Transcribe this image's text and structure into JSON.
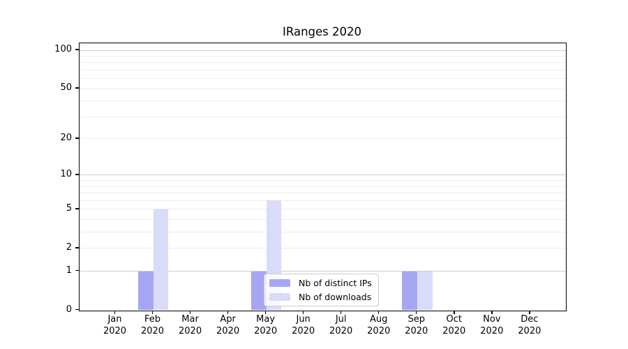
{
  "title": "IRanges 2020",
  "chart_data": {
    "type": "bar",
    "title": "IRanges 2020",
    "year": "2020",
    "categories": [
      "Jan 2020",
      "Feb 2020",
      "Mar 2020",
      "Apr 2020",
      "May 2020",
      "Jun 2020",
      "Jul 2020",
      "Aug 2020",
      "Sep 2020",
      "Oct 2020",
      "Nov 2020",
      "Dec 2020"
    ],
    "month_labels": [
      "Jan",
      "Feb",
      "Mar",
      "Apr",
      "May",
      "Jun",
      "Jul",
      "Aug",
      "Sep",
      "Oct",
      "Nov",
      "Dec"
    ],
    "series": [
      {
        "name": "Nb of distinct IPs",
        "color": "#a5a7f5",
        "values": [
          0,
          1,
          0,
          0,
          1,
          0,
          0,
          0,
          1,
          0,
          0,
          0
        ]
      },
      {
        "name": "Nb of downloads",
        "color": "#d9dbf8",
        "values": [
          0,
          5,
          0,
          0,
          6,
          0,
          0,
          0,
          1,
          0,
          0,
          0
        ]
      }
    ],
    "xlabel": "",
    "ylabel": "",
    "yscale": "log1p",
    "ylim": [
      0,
      113
    ],
    "ytick_values": [
      0,
      1,
      2,
      5,
      10,
      20,
      50,
      100
    ],
    "grid": true,
    "grid_major_values": [
      1,
      10,
      100
    ],
    "grid_minor_values": [
      2,
      3,
      4,
      5,
      6,
      7,
      8,
      9,
      20,
      30,
      40,
      50,
      60,
      70,
      80,
      90
    ],
    "legend_position": "lower center-left inside plot",
    "colors": {
      "grid_major": "#cccccc",
      "grid_minor": "#ececec",
      "axis": "#000000",
      "text": "#000000",
      "background": "#ffffff"
    }
  }
}
